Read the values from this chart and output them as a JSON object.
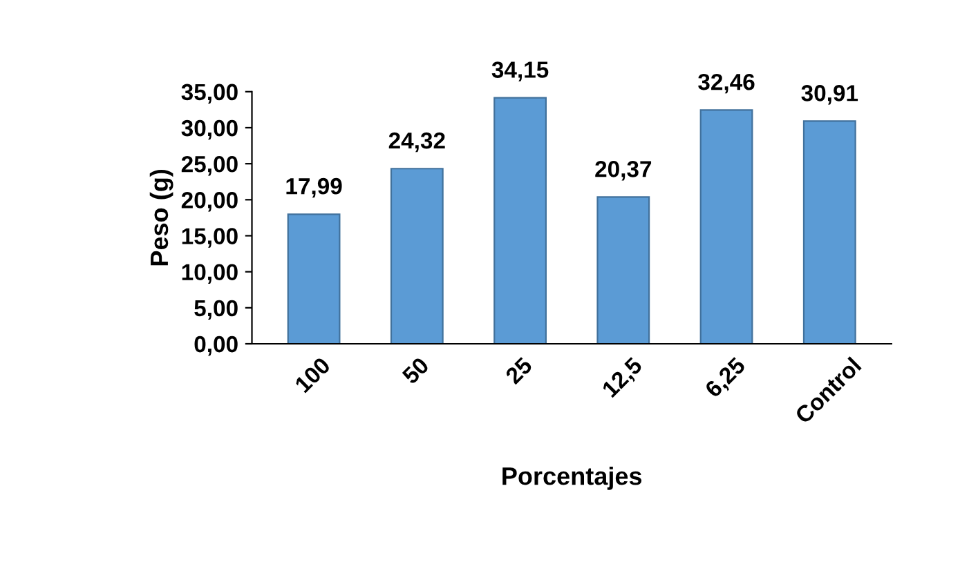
{
  "chart_data": {
    "type": "bar",
    "xlabel": "Porcentajes",
    "ylabel": "Peso (g)",
    "categories": [
      "100",
      "50",
      "25",
      "12,5",
      "6,25",
      "Control"
    ],
    "values": [
      17.99,
      24.32,
      34.15,
      20.37,
      32.46,
      30.91
    ],
    "value_labels": [
      "17,99",
      "24,32",
      "34,15",
      "20,37",
      "32,46",
      "30,91"
    ],
    "color": "#5b9bd5",
    "ylim": [
      0,
      35
    ],
    "yticks": [
      {
        "value": 0,
        "label": "0,00"
      },
      {
        "value": 5,
        "label": "5,00"
      },
      {
        "value": 10,
        "label": "10,00"
      },
      {
        "value": 15,
        "label": "15,00"
      },
      {
        "value": 20,
        "label": "20,00"
      },
      {
        "value": 25,
        "label": "25,00"
      },
      {
        "value": 30,
        "label": "30,00"
      },
      {
        "value": 35,
        "label": "35,00"
      }
    ],
    "grid": false,
    "legend": false
  }
}
